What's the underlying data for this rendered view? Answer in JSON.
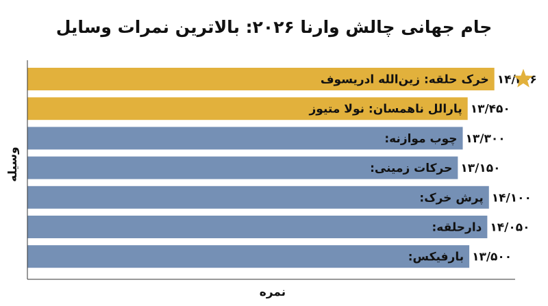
{
  "chart_data": {
    "type": "bar",
    "orientation": "horizontal",
    "title": "جام جهانی چالش وارنا ۲۰۲۶: بالاترین نمرات وسایل",
    "xlabel": "نمره",
    "ylabel": "وسیله",
    "xlim": [
      0,
      14.9
    ],
    "categories": [
      "خرک حلقه: زین‌الله ادریسوف",
      "پارالل ناهمسان: نولا متیوز",
      "چوب موازنه:",
      "حرکات زمینی:",
      "پرش خرک:",
      "دارحلقه:",
      "بارفیکس:"
    ],
    "values": [
      14.266,
      13.45,
      13.3,
      13.15,
      14.1,
      14.05,
      13.5
    ],
    "value_labels": [
      "۱۴/۲۶۶",
      "۱۳/۴۵۰",
      "۱۳/۳۰۰",
      "۱۳/۱۵۰",
      "۱۴/۱۰۰",
      "۱۴/۰۵۰",
      "۱۳/۵۰۰"
    ],
    "highlighted": [
      true,
      true,
      false,
      false,
      false,
      false,
      false
    ],
    "top_marker": "star-icon",
    "grid": false,
    "colors": {
      "highlight": "#e2b13c",
      "default": "#7590b5",
      "star": "#e2b13c",
      "axis": "#333333",
      "text": "#111111"
    }
  }
}
